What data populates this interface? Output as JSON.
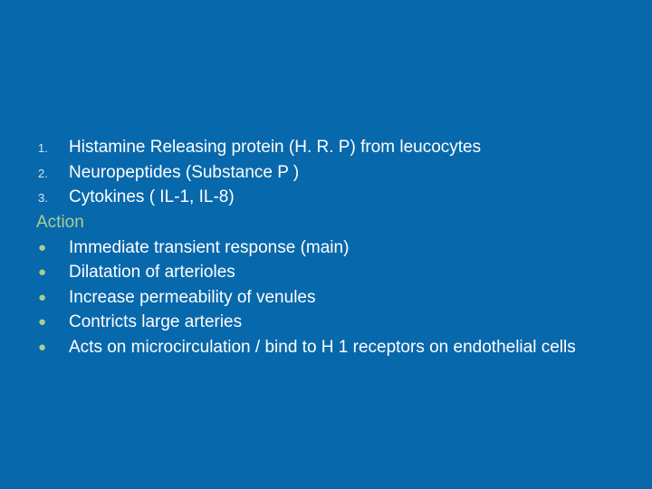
{
  "colors": {
    "background": "#0868ac",
    "body_text": "#ffffff",
    "accent": "#a9cf8a",
    "num_marker": "#cfe8f7"
  },
  "typography": {
    "body_fontsize_pt": 14,
    "marker_num_fontsize_pt": 10,
    "marker_bullet_fontsize_pt": 11,
    "font_family": "Arial"
  },
  "numbered": [
    {
      "marker": "1.",
      "text": "Histamine Releasing protein (H. R. P) from leucocytes"
    },
    {
      "marker": "2.",
      "text": "Neuropeptides (Substance P )"
    },
    {
      "marker": "3.",
      "text": "Cytokines ( IL-1, IL-8)"
    }
  ],
  "heading": "Action",
  "bullets": [
    "Immediate transient response (main)",
    "Dilatation of arterioles",
    "Increase permeability of venules",
    "Contricts large arteries",
    "Acts on microcirculation / bind to H 1 receptors on endothelial cells"
  ]
}
